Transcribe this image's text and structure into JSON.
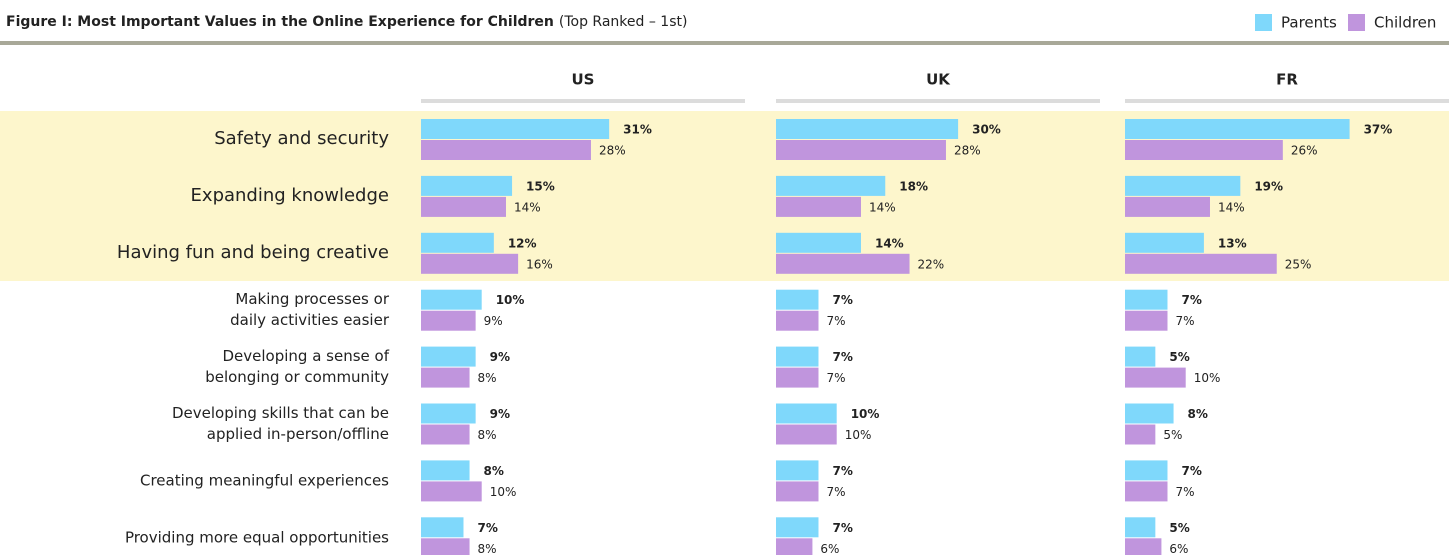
{
  "chart_data": {
    "type": "bar",
    "title": "Figure I: Most Important Values in the Online Experience for Children",
    "subtitle": "(Top Ranked – 1st)",
    "panels": [
      "US",
      "UK",
      "FR"
    ],
    "categories": [
      [
        "Safety and security"
      ],
      [
        "Expanding knowledge"
      ],
      [
        "Having fun and being creative"
      ],
      [
        "Making processes or",
        "daily activities easier"
      ],
      [
        "Developing a sense of",
        "belonging or community"
      ],
      [
        "Developing skills that can be",
        "applied in-person/offline"
      ],
      [
        "Creating meaningful experiences"
      ],
      [
        "Providing more equal opportunities"
      ]
    ],
    "series": [
      {
        "name": "Parents",
        "color": "#7fd8fb",
        "values": [
          [
            31,
            15,
            12,
            10,
            9,
            9,
            8,
            7
          ],
          [
            30,
            18,
            14,
            7,
            7,
            10,
            7,
            7
          ],
          [
            37,
            19,
            13,
            7,
            5,
            8,
            7,
            5
          ]
        ],
        "value_labels": [
          [
            "31%",
            "15%",
            "12%",
            "10%",
            "9%",
            "9%",
            "8%",
            "7%"
          ],
          [
            "30%",
            "18%",
            "14%",
            "7%",
            "7%",
            "10%",
            "7%",
            "7%"
          ],
          [
            "37%",
            "19%",
            "13%",
            "7%",
            "5%",
            "8%",
            "7%",
            "5%"
          ]
        ]
      },
      {
        "name": "Children",
        "color": "#c095dd",
        "values": [
          [
            28,
            14,
            16,
            9,
            8,
            8,
            10,
            8
          ],
          [
            28,
            14,
            22,
            7,
            7,
            10,
            7,
            6
          ],
          [
            26,
            14,
            25,
            7,
            10,
            5,
            7,
            6
          ]
        ],
        "value_labels": [
          [
            "28%",
            "14%",
            "16%",
            "9%",
            "8%",
            "8%",
            "10%",
            "8%"
          ],
          [
            "28%",
            "14%",
            "22%",
            "7%",
            "7%",
            "10%",
            "7%",
            "6%"
          ],
          [
            "26%",
            "14%",
            "25%",
            "7%",
            "10%",
            "5%",
            "7%",
            "6%"
          ]
        ]
      }
    ]
  }
}
